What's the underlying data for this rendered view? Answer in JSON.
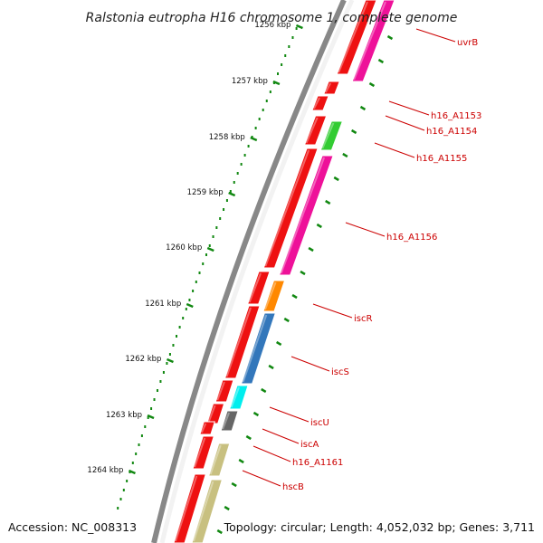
{
  "title": "Ralstonia eutropha H16 chromosome 1, complete genome",
  "footer": {
    "accession": "Accession: NC_008313",
    "topology": "Topology: circular; Length: 4,052,032 bp; Genes: 3,711"
  },
  "colors": {
    "strand_red": "#ee1111",
    "magenta": "#ee1199",
    "green": "#33cc33",
    "orange": "#ff8800",
    "steel_blue": "#3377bb",
    "cyan": "#00eeee",
    "dark_gray": "#666666",
    "khaki": "#c8c080",
    "label_red": "#cc0000",
    "tick_green": "#118811"
  },
  "scale_ticks": [
    {
      "label": "1256 kbp"
    },
    {
      "label": "1257 kbp"
    },
    {
      "label": "1258 kbp"
    },
    {
      "label": "1259 kbp"
    },
    {
      "label": "1260 kbp"
    },
    {
      "label": "1261 kbp"
    },
    {
      "label": "1262 kbp"
    },
    {
      "label": "1263 kbp"
    },
    {
      "label": "1264 kbp"
    }
  ],
  "gene_labels": [
    {
      "name": "uvrB"
    },
    {
      "name": "h16_A1153"
    },
    {
      "name": "h16_A1154"
    },
    {
      "name": "h16_A1155"
    },
    {
      "name": "h16_A1156"
    },
    {
      "name": "iscR"
    },
    {
      "name": "iscS"
    },
    {
      "name": "iscU"
    },
    {
      "name": "iscA"
    },
    {
      "name": "h16_A1161"
    },
    {
      "name": "hscB"
    }
  ]
}
